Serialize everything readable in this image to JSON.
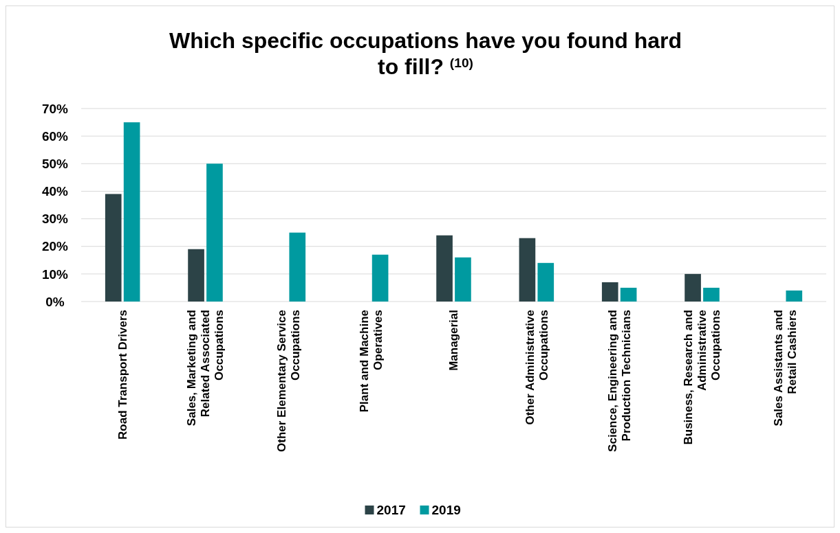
{
  "chart_data": {
    "type": "bar",
    "title": "Which specific occupations have you found hard to fill? $^{(10)}$",
    "categories": [
      "Road Transport Drivers",
      "Sales, Marketing and Related Associated Occupations",
      "Other Elementary Service Occupations",
      "Plant and Machine Operatives",
      "Managerial",
      "Other Administrative Occupations",
      "Science, Engineering and Production Technicians",
      "Business, Research and Administrative Occupations",
      "Sales Assistants and Retail Cashiers"
    ],
    "series": [
      {
        "name": "2017",
        "color": "#2c4347",
        "values": [
          39,
          19,
          null,
          null,
          24,
          23,
          7,
          10,
          null
        ]
      },
      {
        "name": "2019",
        "color": "#009aa0",
        "values": [
          65,
          50,
          25,
          17,
          16,
          14,
          5,
          5,
          4
        ]
      }
    ],
    "ylim": [
      0,
      70
    ],
    "yticks": [
      {
        "value": 0,
        "label": "0%"
      },
      {
        "value": 10,
        "label": "10%"
      },
      {
        "value": 20,
        "label": "20%"
      },
      {
        "value": 30,
        "label": "30%"
      },
      {
        "value": 40,
        "label": "40%"
      },
      {
        "value": 50,
        "label": "50%"
      },
      {
        "value": 60,
        "label": "60%"
      },
      {
        "value": 70,
        "label": "70%"
      }
    ],
    "grid": "y",
    "legend": "bottom"
  }
}
